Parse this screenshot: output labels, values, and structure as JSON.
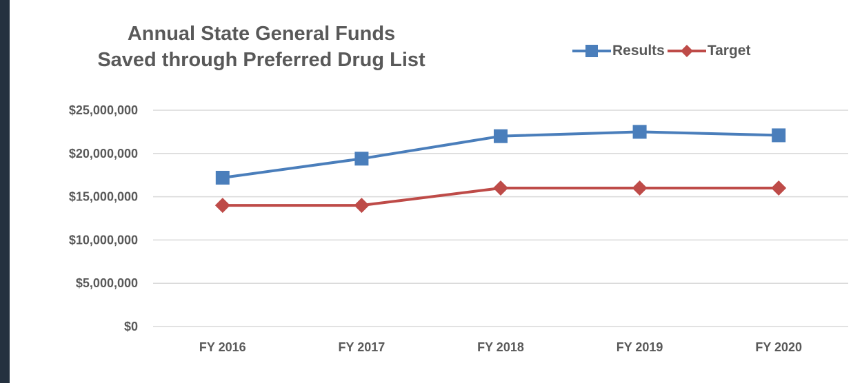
{
  "chart_data": {
    "type": "line",
    "title_lines": [
      "Annual State General Funds",
      "Saved through Preferred Drug List"
    ],
    "categories": [
      "FY 2016",
      "FY 2017",
      "FY 2018",
      "FY 2019",
      "FY 2020"
    ],
    "series": [
      {
        "name": "Results",
        "values": [
          17200000,
          19400000,
          22000000,
          22500000,
          22100000
        ],
        "color": "#4a7ebb",
        "marker": "square"
      },
      {
        "name": "Target",
        "values": [
          14000000,
          14000000,
          16000000,
          16000000,
          16000000
        ],
        "color": "#be4b48",
        "marker": "diamond"
      }
    ],
    "ylim": [
      0,
      25000000
    ],
    "y_ticks": [
      0,
      5000000,
      10000000,
      15000000,
      20000000,
      25000000
    ],
    "y_tick_labels": [
      "$0",
      "$5,000,000",
      "$10,000,000",
      "$15,000,000",
      "$20,000,000",
      "$25,000,000"
    ],
    "grid": "horizontal",
    "legend_position": "top-right",
    "xlabel": "",
    "ylabel": ""
  }
}
